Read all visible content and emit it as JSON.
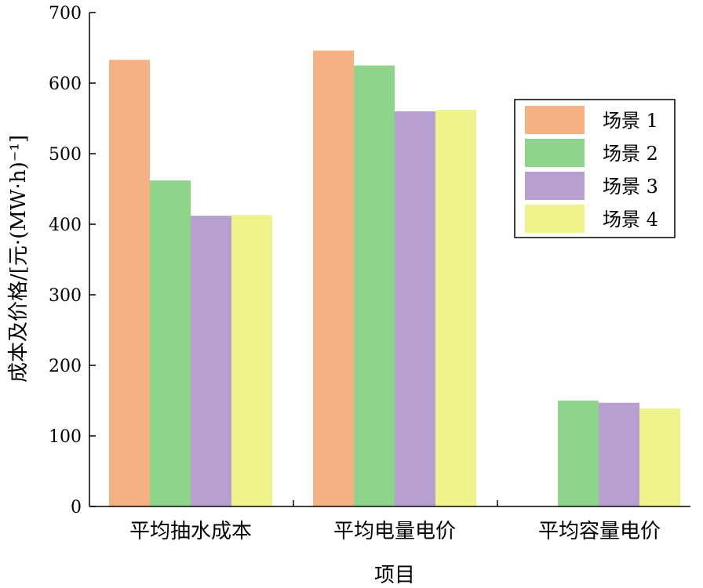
{
  "chart_data": {
    "type": "bar",
    "xlabel": "项目",
    "ylabel": "成本及价格/[元·(MW·h)⁻¹]",
    "ylim": [
      0,
      700
    ],
    "yticks": [
      0,
      100,
      200,
      300,
      400,
      500,
      600,
      700
    ],
    "categories": [
      "平均抽水成本",
      "平均电量电价",
      "平均容量电价"
    ],
    "series": [
      {
        "name": "场景 1",
        "color": "#F5B183",
        "values": [
          633,
          646,
          0
        ]
      },
      {
        "name": "场景 2",
        "color": "#8ED48D",
        "values": [
          462,
          625,
          150
        ]
      },
      {
        "name": "场景 3",
        "color": "#B7A0D0",
        "values": [
          412,
          560,
          147
        ]
      },
      {
        "name": "场景 4",
        "color": "#EEF38C",
        "values": [
          413,
          562,
          139
        ]
      }
    ],
    "legend_position": "top-right",
    "grid": false
  }
}
